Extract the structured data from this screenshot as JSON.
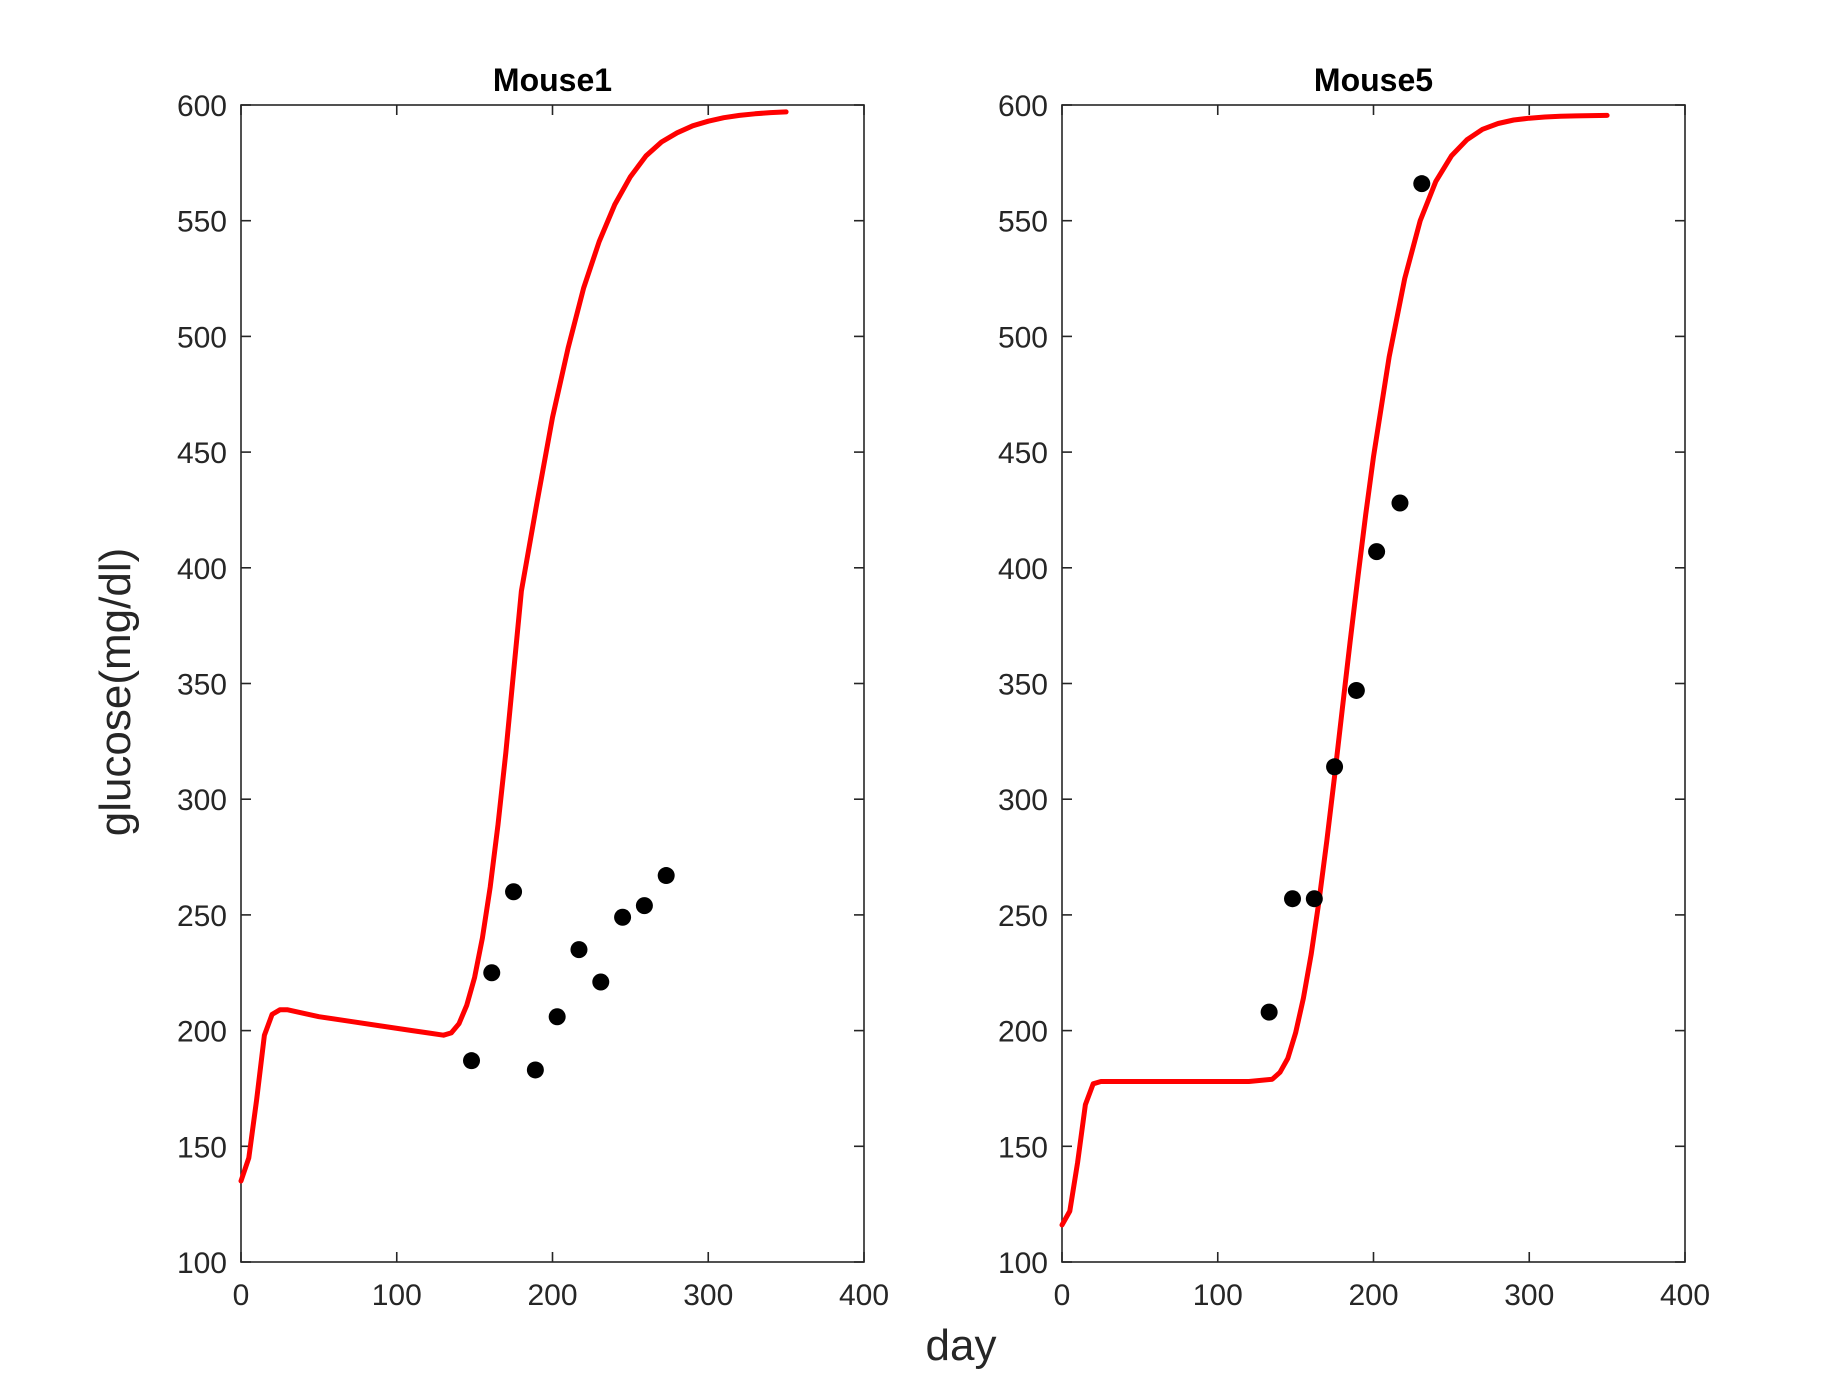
{
  "figure": {
    "xlabel": "day",
    "ylabel": "glucose(mg/dl)"
  },
  "colors": {
    "model_line": "#ff0000",
    "data_points": "#000000",
    "axes": "#262626"
  },
  "chart_data": [
    {
      "type": "line",
      "title": "Mouse1",
      "xlim": [
        0,
        400
      ],
      "ylim": [
        100,
        600
      ],
      "xticks": [
        0,
        100,
        200,
        300,
        400
      ],
      "yticks": [
        100,
        150,
        200,
        250,
        300,
        350,
        400,
        450,
        500,
        550,
        600
      ],
      "grid": false,
      "series": [
        {
          "kind": "line",
          "color": "#ff0000",
          "x": [
            0,
            5,
            10,
            15,
            20,
            25,
            30,
            50,
            70,
            90,
            110,
            120,
            130,
            135,
            140,
            145,
            150,
            155,
            160,
            165,
            170,
            175,
            180,
            190,
            200,
            210,
            220,
            230,
            240,
            250,
            260,
            270,
            280,
            290,
            300,
            310,
            320,
            330,
            340,
            350
          ],
          "y": [
            135,
            145,
            170,
            198,
            207,
            209,
            209,
            206,
            204,
            202,
            200,
            199,
            198,
            199,
            203,
            211,
            223,
            240,
            262,
            289,
            320,
            355,
            390,
            428,
            465,
            495,
            521,
            541,
            557,
            569,
            578,
            584,
            588,
            591,
            593,
            594.5,
            595.5,
            596.2,
            596.7,
            597
          ]
        },
        {
          "kind": "scatter",
          "color": "#000000",
          "x": [
            148,
            161,
            175,
            189,
            203,
            217,
            231,
            245,
            259,
            273
          ],
          "y": [
            187,
            225,
            260,
            183,
            206,
            235,
            221,
            249,
            254,
            267
          ]
        }
      ]
    },
    {
      "type": "line",
      "title": "Mouse5",
      "xlim": [
        0,
        400
      ],
      "ylim": [
        100,
        600
      ],
      "xticks": [
        0,
        100,
        200,
        300,
        400
      ],
      "yticks": [
        100,
        150,
        200,
        250,
        300,
        350,
        400,
        450,
        500,
        550,
        600
      ],
      "grid": false,
      "series": [
        {
          "kind": "line",
          "color": "#ff0000",
          "x": [
            0,
            5,
            10,
            15,
            20,
            25,
            30,
            60,
            90,
            120,
            135,
            140,
            145,
            150,
            155,
            160,
            165,
            170,
            175,
            180,
            185,
            190,
            195,
            200,
            210,
            220,
            230,
            240,
            250,
            260,
            270,
            280,
            290,
            300,
            310,
            320,
            330,
            340,
            350
          ],
          "y": [
            116,
            122,
            143,
            168,
            177,
            178,
            178,
            178,
            178,
            178,
            179,
            182,
            188,
            199,
            214,
            233,
            256,
            282,
            310,
            339,
            368,
            396,
            423,
            448,
            491,
            525,
            550,
            567,
            578,
            585,
            589.5,
            592,
            593.5,
            594.3,
            594.8,
            595.1,
            595.3,
            595.4,
            595.5
          ]
        },
        {
          "kind": "scatter",
          "color": "#000000",
          "x": [
            133,
            148,
            162,
            175,
            189,
            202,
            217,
            231
          ],
          "y": [
            208,
            257,
            257,
            314,
            347,
            407,
            428,
            566
          ]
        }
      ]
    }
  ]
}
